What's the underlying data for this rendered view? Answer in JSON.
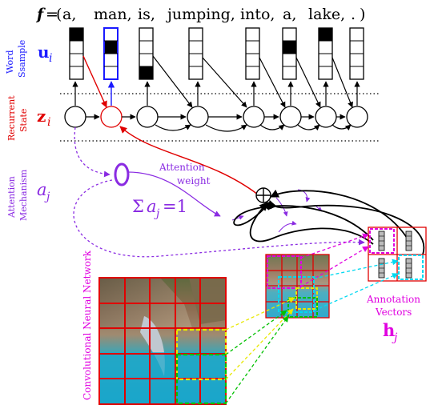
{
  "sentence": {
    "f": "f",
    "eq": "=",
    "open_paren": "(",
    "close_paren": ")",
    "words": [
      "a,",
      "man,",
      "is,",
      "jumping,",
      "into,",
      "a,",
      "lake,",
      "."
    ]
  },
  "rows": {
    "word_sample_line1": "Word",
    "word_sample_line2": "Ssample",
    "u_symbol": "u",
    "u_subscript": "i",
    "recurrent_line1": "Recurrent",
    "recurrent_line2": "State",
    "z_symbol": "z",
    "z_subscript": "i",
    "attention_line1": "Attention",
    "attention_line2": "Mechanism",
    "a_symbol": "a",
    "a_subscript": "j"
  },
  "attention": {
    "weight_line1": "Attention",
    "weight_line2": "weight",
    "sum_sigma": "Σ",
    "sum_a": "a",
    "sum_sub": "j",
    "sum_eq": "=1",
    "combine_symbol": "⊕"
  },
  "cnn": {
    "label": "Convolutional Neural Network"
  },
  "annotation": {
    "line1": "Annotation",
    "line2": "Vectors",
    "h_symbol": "h",
    "h_subscript": "j"
  },
  "colors": {
    "blue": "#1a1aff",
    "red": "#e00000",
    "purple": "#8a2be2",
    "magenta": "#e000e0",
    "cyan": "#00d8f0",
    "yellow": "#f0f000",
    "green": "#00c000",
    "black": "#000000"
  }
}
